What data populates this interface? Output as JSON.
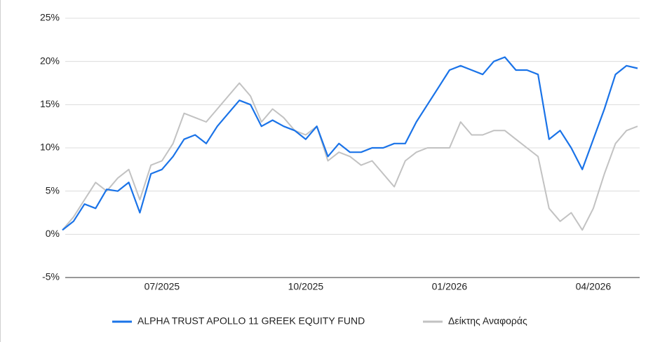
{
  "chart_data": {
    "type": "line",
    "categories": [
      null,
      null,
      null,
      null,
      null,
      null,
      null,
      null,
      null,
      "07/2025",
      null,
      null,
      null,
      null,
      null,
      null,
      null,
      null,
      null,
      null,
      null,
      null,
      "10/2025",
      null,
      null,
      null,
      null,
      null,
      null,
      null,
      null,
      null,
      null,
      null,
      null,
      "01/2026",
      null,
      null,
      null,
      null,
      null,
      null,
      null,
      null,
      null,
      null,
      null,
      null,
      "04/2026",
      null,
      null,
      null,
      null
    ],
    "series": [
      {
        "name": "ALPHA TRUST APOLLO 11 GREEK EQUITY FUND",
        "color": "#1a73e8",
        "values": [
          0.5,
          1.5,
          3.5,
          3,
          5.2,
          5,
          6,
          2.5,
          7,
          7.5,
          9,
          11,
          11.5,
          10.5,
          12.5,
          14,
          15.5,
          15,
          12.5,
          13.2,
          12.5,
          12,
          11,
          12.5,
          9,
          10.5,
          9.5,
          9.5,
          10,
          10,
          10.5,
          10.5,
          13,
          15,
          17,
          19,
          19.5,
          19,
          18.5,
          20,
          20.5,
          19,
          19,
          18.5,
          11,
          12,
          10,
          7.5,
          11,
          14.5,
          18.5,
          19.5,
          19.2
        ]
      },
      {
        "name": "Δείκτης Αναφοράς",
        "color": "#c2c2c2",
        "values": [
          0.5,
          2,
          4,
          6,
          5,
          6.5,
          7.5,
          4,
          8,
          8.5,
          10.5,
          14,
          13.5,
          13,
          14.5,
          16,
          17.5,
          16,
          13,
          14.5,
          13.5,
          12,
          11.5,
          12.5,
          8.5,
          9.5,
          9,
          8,
          8.5,
          7,
          5.5,
          8.5,
          9.5,
          10,
          10,
          10,
          13,
          11.5,
          11.5,
          12,
          12,
          11,
          10,
          9,
          3,
          1.5,
          2.5,
          0.5,
          3,
          7,
          10.5,
          12,
          12.5
        ]
      }
    ],
    "ylim": [
      -5,
      25
    ],
    "yticks": [
      {
        "value": -5,
        "label": "-5%"
      },
      {
        "value": 0,
        "label": "0%"
      },
      {
        "value": 5,
        "label": "5%"
      },
      {
        "value": 10,
        "label": "10%"
      },
      {
        "value": 15,
        "label": "15%"
      },
      {
        "value": 20,
        "label": "20%"
      },
      {
        "value": 25,
        "label": "25%"
      }
    ],
    "grid": true,
    "legend": "bottom"
  }
}
